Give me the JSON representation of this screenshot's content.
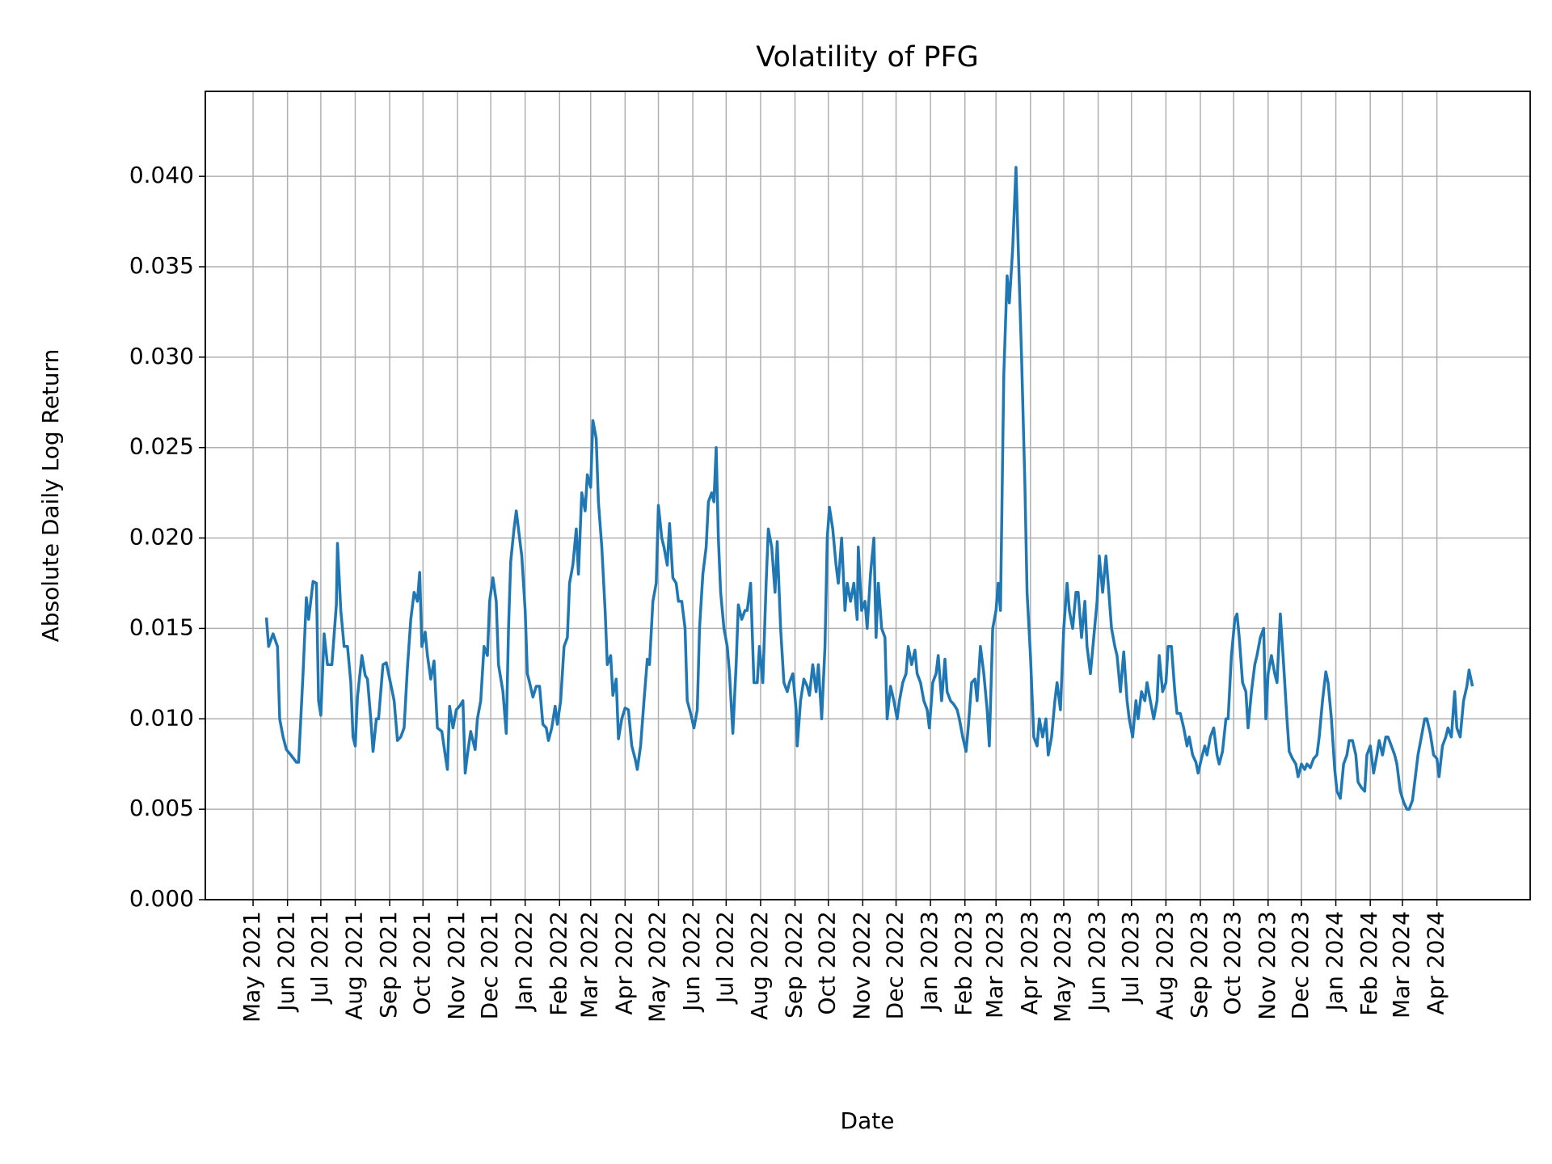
{
  "chart_data": {
    "type": "line",
    "title": "Volatility of PFG",
    "xlabel": "Date",
    "ylabel": "Absolute Daily Log Return",
    "color": "#1f77b4",
    "grid": true,
    "xlim": [
      -43,
      1150
    ],
    "xticks": [
      {
        "value": 0,
        "label": "May 2021"
      },
      {
        "value": 31,
        "label": "Jun 2021"
      },
      {
        "value": 61,
        "label": "Jul 2021"
      },
      {
        "value": 92,
        "label": "Aug 2021"
      },
      {
        "value": 123,
        "label": "Sep 2021"
      },
      {
        "value": 153,
        "label": "Oct 2021"
      },
      {
        "value": 184,
        "label": "Nov 2021"
      },
      {
        "value": 214,
        "label": "Dec 2021"
      },
      {
        "value": 245,
        "label": "Jan 2022"
      },
      {
        "value": 276,
        "label": "Feb 2022"
      },
      {
        "value": 304,
        "label": "Mar 2022"
      },
      {
        "value": 335,
        "label": "Apr 2022"
      },
      {
        "value": 365,
        "label": "May 2022"
      },
      {
        "value": 396,
        "label": "Jun 2022"
      },
      {
        "value": 426,
        "label": "Jul 2022"
      },
      {
        "value": 457,
        "label": "Aug 2022"
      },
      {
        "value": 488,
        "label": "Sep 2022"
      },
      {
        "value": 518,
        "label": "Oct 2022"
      },
      {
        "value": 549,
        "label": "Nov 2022"
      },
      {
        "value": 579,
        "label": "Dec 2022"
      },
      {
        "value": 610,
        "label": "Jan 2023"
      },
      {
        "value": 641,
        "label": "Feb 2023"
      },
      {
        "value": 669,
        "label": "Mar 2023"
      },
      {
        "value": 700,
        "label": "Apr 2023"
      },
      {
        "value": 730,
        "label": "May 2023"
      },
      {
        "value": 761,
        "label": "Jun 2023"
      },
      {
        "value": 791,
        "label": "Jul 2023"
      },
      {
        "value": 822,
        "label": "Aug 2023"
      },
      {
        "value": 853,
        "label": "Sep 2023"
      },
      {
        "value": 883,
        "label": "Oct 2023"
      },
      {
        "value": 914,
        "label": "Nov 2023"
      },
      {
        "value": 944,
        "label": "Dec 2023"
      },
      {
        "value": 975,
        "label": "Jan 2024"
      },
      {
        "value": 1006,
        "label": "Feb 2024"
      },
      {
        "value": 1035,
        "label": "Mar 2024"
      },
      {
        "value": 1066,
        "label": "Apr 2024"
      }
    ],
    "ylim": [
      0,
      0.0447
    ],
    "yticks": [
      {
        "value": 0,
        "label": "0.000"
      },
      0.005,
      {
        "value": 0.01,
        "label": "0.010"
      },
      0.015,
      {
        "value": 0.02,
        "label": "0.020"
      },
      0.025,
      {
        "value": 0.03,
        "label": "0.030"
      },
      0.035,
      {
        "value": 0.04,
        "label": "0.040"
      }
    ],
    "x": [
      12,
      14,
      18,
      22,
      24,
      27,
      30,
      34,
      39,
      41,
      45,
      48,
      50,
      54,
      57,
      59,
      61,
      64,
      67,
      71,
      75,
      76,
      79,
      82,
      85,
      88,
      90,
      92,
      94,
      98,
      101,
      103,
      106,
      108,
      111,
      113,
      117,
      120,
      123,
      127,
      130,
      133,
      136,
      139,
      142,
      145,
      148,
      150,
      152,
      155,
      157,
      160,
      163,
      166,
      170,
      173,
      175,
      177,
      180,
      183,
      186,
      189,
      191,
      193,
      196,
      200,
      202,
      205,
      208,
      211,
      213,
      216,
      219,
      221,
      225,
      228,
      230,
      232,
      235,
      237,
      239,
      242,
      245,
      247,
      249,
      252,
      255,
      258,
      261,
      264,
      266,
      269,
      272,
      274,
      277,
      280,
      283,
      285,
      288,
      291,
      293,
      296,
      299,
      301,
      304,
      306,
      309,
      311,
      314,
      317,
      319,
      322,
      324,
      327,
      329,
      332,
      335,
      338,
      341,
      344,
      346,
      349,
      352,
      355,
      357,
      360,
      363,
      365,
      368,
      370,
      373,
      375,
      378,
      381,
      383,
      386,
      389,
      391,
      394,
      397,
      400,
      402,
      405,
      408,
      410,
      413,
      415,
      417,
      419,
      421,
      424,
      427,
      429,
      432,
      435,
      437,
      440,
      443,
      445,
      448,
      451,
      454,
      456,
      459,
      462,
      464,
      467,
      470,
      472,
      475,
      478,
      481,
      483,
      486,
      489,
      490,
      493,
      496,
      499,
      501,
      504,
      507,
      509,
      512,
      515,
      517,
      519,
      522,
      525,
      527,
      530,
      533,
      535,
      538,
      541,
      544,
      545,
      548,
      551,
      553,
      556,
      559,
      561,
      563,
      566,
      569,
      571,
      574,
      577,
      580,
      582,
      585,
      588,
      590,
      593,
      596,
      598,
      601,
      604,
      607,
      609,
      612,
      615,
      617,
      620,
      623,
      625,
      628,
      631,
      634,
      636,
      639,
      642,
      644,
      647,
      650,
      652,
      655,
      658,
      661,
      663,
      666,
      669,
      671,
      673,
      676,
      679,
      681,
      684,
      687,
      689,
      692,
      695,
      697,
      700,
      703,
      706,
      708,
      711,
      714,
      716,
      719,
      722,
      724,
      727,
      730,
      733,
      735,
      738,
      741,
      743,
      746,
      749,
      751,
      754,
      757,
      760,
      762,
      765,
      768,
      770,
      773,
      776,
      778,
      781,
      784,
      787,
      789,
      792,
      795,
      797,
      800,
      803,
      805,
      808,
      811,
      814,
      816,
      819,
      822,
      824,
      827,
      830,
      832,
      835,
      838,
      841,
      843,
      846,
      849,
      851,
      854,
      857,
      859,
      862,
      865,
      868,
      870,
      873,
      876,
      878,
      881,
      884,
      886,
      888,
      891,
      894,
      896,
      899,
      902,
      904,
      907,
      910,
      912,
      914,
      917,
      920,
      922,
      925,
      928,
      931,
      933,
      936,
      939,
      941,
      944,
      947,
      949,
      952,
      955,
      958,
      960,
      963,
      966,
      968,
      971,
      974,
      976,
      979,
      982,
      985,
      987,
      990,
      993,
      995,
      998,
      1001,
      1003,
      1006,
      1009,
      1012,
      1014,
      1017,
      1020,
      1022,
      1025,
      1028,
      1030,
      1033,
      1036,
      1039,
      1041,
      1044,
      1047,
      1049,
      1052,
      1055,
      1057,
      1060,
      1063,
      1066,
      1068,
      1071,
      1074,
      1076,
      1079,
      1082,
      1084,
      1087,
      1090,
      1093,
      1095,
      1098
    ],
    "values": [
      0.0156,
      0.014,
      0.0147,
      0.014,
      0.01,
      0.009,
      0.0083,
      0.008,
      0.0076,
      0.0076,
      0.0125,
      0.0167,
      0.0155,
      0.0176,
      0.0175,
      0.011,
      0.0102,
      0.0147,
      0.013,
      0.013,
      0.0163,
      0.0197,
      0.016,
      0.014,
      0.014,
      0.012,
      0.009,
      0.0085,
      0.0112,
      0.0135,
      0.0124,
      0.0122,
      0.01,
      0.0082,
      0.01,
      0.01,
      0.013,
      0.0131,
      0.0122,
      0.011,
      0.0088,
      0.009,
      0.0095,
      0.0128,
      0.0155,
      0.017,
      0.0165,
      0.0181,
      0.014,
      0.0148,
      0.0135,
      0.0122,
      0.0132,
      0.0095,
      0.0093,
      0.008,
      0.0072,
      0.0107,
      0.0095,
      0.0105,
      0.0107,
      0.011,
      0.007,
      0.008,
      0.0093,
      0.0083,
      0.01,
      0.011,
      0.014,
      0.0135,
      0.0165,
      0.0178,
      0.0165,
      0.013,
      0.0115,
      0.0092,
      0.015,
      0.0187,
      0.0205,
      0.0215,
      0.0205,
      0.019,
      0.016,
      0.0125,
      0.012,
      0.0112,
      0.0118,
      0.0118,
      0.0097,
      0.0095,
      0.0088,
      0.0095,
      0.0107,
      0.0097,
      0.011,
      0.014,
      0.0145,
      0.0175,
      0.0185,
      0.0205,
      0.018,
      0.0225,
      0.0215,
      0.0235,
      0.0228,
      0.0265,
      0.0255,
      0.022,
      0.0195,
      0.016,
      0.013,
      0.0135,
      0.0113,
      0.0122,
      0.0089,
      0.01,
      0.0106,
      0.0105,
      0.0085,
      0.0078,
      0.0072,
      0.0085,
      0.011,
      0.0133,
      0.013,
      0.0165,
      0.0175,
      0.0218,
      0.02,
      0.0195,
      0.0185,
      0.0208,
      0.0178,
      0.0175,
      0.0165,
      0.0165,
      0.015,
      0.011,
      0.0103,
      0.0095,
      0.0105,
      0.015,
      0.018,
      0.0195,
      0.022,
      0.0225,
      0.022,
      0.025,
      0.02,
      0.017,
      0.015,
      0.014,
      0.0125,
      0.0092,
      0.013,
      0.0163,
      0.0155,
      0.016,
      0.016,
      0.0175,
      0.012,
      0.012,
      0.014,
      0.012,
      0.0175,
      0.0205,
      0.0195,
      0.017,
      0.0198,
      0.015,
      0.012,
      0.0115,
      0.012,
      0.0125,
      0.0105,
      0.0085,
      0.011,
      0.0122,
      0.0118,
      0.0113,
      0.013,
      0.0115,
      0.013,
      0.01,
      0.014,
      0.02,
      0.0217,
      0.0205,
      0.0185,
      0.0175,
      0.02,
      0.016,
      0.0175,
      0.0165,
      0.0175,
      0.0155,
      0.0195,
      0.016,
      0.0165,
      0.015,
      0.018,
      0.02,
      0.0145,
      0.0175,
      0.015,
      0.0145,
      0.01,
      0.0118,
      0.011,
      0.01,
      0.011,
      0.012,
      0.0125,
      0.014,
      0.013,
      0.0138,
      0.0125,
      0.012,
      0.011,
      0.0105,
      0.0095,
      0.012,
      0.0125,
      0.0135,
      0.011,
      0.0133,
      0.0115,
      0.011,
      0.0108,
      0.0105,
      0.01,
      0.009,
      0.0082,
      0.0095,
      0.012,
      0.0122,
      0.011,
      0.014,
      0.0125,
      0.0105,
      0.0085,
      0.015,
      0.016,
      0.0175,
      0.016,
      0.029,
      0.0345,
      0.033,
      0.036,
      0.0405,
      0.036,
      0.03,
      0.023,
      0.017,
      0.0135,
      0.009,
      0.0085,
      0.01,
      0.009,
      0.01,
      0.008,
      0.009,
      0.011,
      0.012,
      0.0105,
      0.015,
      0.0175,
      0.016,
      0.015,
      0.017,
      0.017,
      0.0145,
      0.0165,
      0.014,
      0.0125,
      0.0145,
      0.0165,
      0.019,
      0.017,
      0.019,
      0.0175,
      0.015,
      0.014,
      0.0135,
      0.0115,
      0.0137,
      0.011,
      0.01,
      0.009,
      0.011,
      0.01,
      0.0115,
      0.011,
      0.012,
      0.011,
      0.01,
      0.011,
      0.0135,
      0.0115,
      0.012,
      0.014,
      0.014,
      0.0115,
      0.0103,
      0.0103,
      0.0095,
      0.0085,
      0.009,
      0.008,
      0.0076,
      0.007,
      0.0078,
      0.0085,
      0.008,
      0.009,
      0.0095,
      0.008,
      0.0075,
      0.0082,
      0.01,
      0.01,
      0.0135,
      0.0155,
      0.0158,
      0.0145,
      0.012,
      0.0115,
      0.0095,
      0.0115,
      0.013,
      0.0135,
      0.0145,
      0.015,
      0.01,
      0.0125,
      0.0135,
      0.0125,
      0.012,
      0.0158,
      0.013,
      0.01,
      0.0082,
      0.0078,
      0.0075,
      0.0068,
      0.0075,
      0.0072,
      0.0075,
      0.0073,
      0.0078,
      0.008,
      0.009,
      0.011,
      0.0126,
      0.012,
      0.01,
      0.0072,
      0.006,
      0.0056,
      0.0075,
      0.008,
      0.0088,
      0.0088,
      0.008,
      0.0065,
      0.0062,
      0.006,
      0.008,
      0.0085,
      0.007,
      0.008,
      0.0088,
      0.008,
      0.009,
      0.009,
      0.0085,
      0.008,
      0.0075,
      0.006,
      0.0054,
      0.005,
      0.005,
      0.0055,
      0.007,
      0.008,
      0.009,
      0.01,
      0.01,
      0.0092,
      0.008,
      0.0078,
      0.0068,
      0.0085,
      0.009,
      0.0095,
      0.009,
      0.0115,
      0.0095,
      0.009,
      0.011,
      0.0118,
      0.0127,
      0.0118
    ]
  }
}
